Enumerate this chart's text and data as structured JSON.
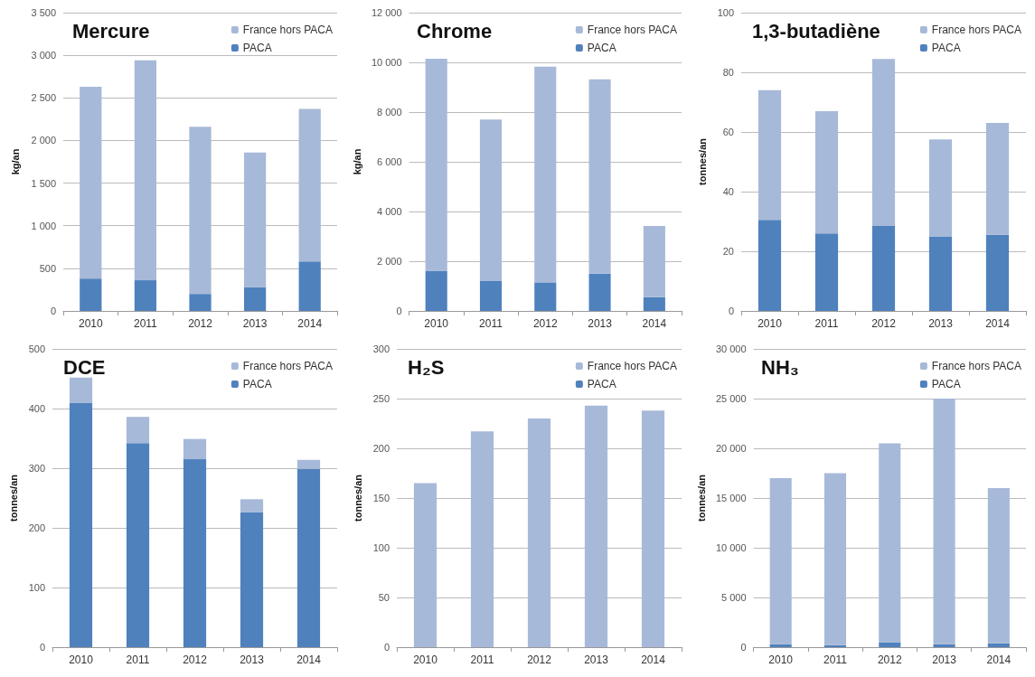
{
  "chart_data": [
    {
      "type": "bar",
      "title": "Mercure",
      "ylabel": "kg/an",
      "categories": [
        "2010",
        "2011",
        "2012",
        "2013",
        "2014"
      ],
      "stacked": true,
      "legend": "top right",
      "grid": "y",
      "ylim": [
        0,
        3500
      ],
      "yticks": [
        0,
        500,
        {
          "value": 1000,
          "label": "1 000"
        },
        {
          "value": 1500,
          "label": "1 500"
        },
        {
          "value": 2000,
          "label": "2 000"
        },
        {
          "value": 2500,
          "label": "2 500"
        },
        {
          "value": 3000,
          "label": "3 000"
        },
        {
          "value": 3500,
          "label": "3 500"
        }
      ],
      "series": [
        {
          "name": "PACA",
          "color": "#4f81bd",
          "values": [
            380,
            360,
            200,
            280,
            580
          ]
        },
        {
          "name": "France hors PACA",
          "color": "#a7b9d8",
          "values": [
            2250,
            2580,
            1960,
            1580,
            1790
          ]
        }
      ]
    },
    {
      "type": "bar",
      "title": "Chrome",
      "ylabel": "kg/an",
      "categories": [
        "2010",
        "2011",
        "2012",
        "2013",
        "2014"
      ],
      "stacked": true,
      "legend": "top right",
      "grid": "y",
      "ylim": [
        0,
        12000
      ],
      "yticks": [
        0,
        {
          "value": 2000,
          "label": "2 000"
        },
        {
          "value": 4000,
          "label": "4 000"
        },
        {
          "value": 6000,
          "label": "6 000"
        },
        {
          "value": 8000,
          "label": "8 000"
        },
        {
          "value": 10000,
          "label": "10 000"
        },
        {
          "value": 12000,
          "label": "12 000"
        }
      ],
      "series": [
        {
          "name": "PACA",
          "color": "#4f81bd",
          "values": [
            1620,
            1220,
            1150,
            1500,
            560
          ]
        },
        {
          "name": "France hors PACA",
          "color": "#a7b9d8",
          "values": [
            8530,
            6480,
            8680,
            7820,
            2860
          ]
        }
      ]
    },
    {
      "type": "bar",
      "title": "1,3-butadiène",
      "ylabel": "tonnes/an",
      "categories": [
        "2010",
        "2011",
        "2012",
        "2013",
        "2014"
      ],
      "stacked": true,
      "legend": "top right",
      "grid": "y",
      "ylim": [
        0,
        100
      ],
      "yticks": [
        0,
        20,
        40,
        60,
        80,
        100
      ],
      "series": [
        {
          "name": "PACA",
          "color": "#4f81bd",
          "values": [
            30.5,
            26,
            28.5,
            25,
            25.5
          ]
        },
        {
          "name": "France hors PACA",
          "color": "#a7b9d8",
          "values": [
            43.5,
            41,
            56,
            32.5,
            37.5
          ]
        }
      ]
    },
    {
      "type": "bar",
      "title": "DCE",
      "ylabel": "tonnes/an",
      "categories": [
        "2010",
        "2011",
        "2012",
        "2013",
        "2014"
      ],
      "stacked": true,
      "legend": "top right",
      "grid": "y",
      "ylim": [
        0,
        500
      ],
      "yticks": [
        0,
        100,
        200,
        300,
        400,
        500
      ],
      "series": [
        {
          "name": "PACA",
          "color": "#4f81bd",
          "values": [
            410,
            342,
            315,
            226,
            299
          ]
        },
        {
          "name": "France hors PACA",
          "color": "#a7b9d8",
          "values": [
            42,
            44,
            34,
            22,
            15
          ]
        }
      ]
    },
    {
      "type": "bar",
      "title": "H₂S",
      "ylabel": "tonnes/an",
      "categories": [
        "2010",
        "2011",
        "2012",
        "2013",
        "2014"
      ],
      "stacked": true,
      "legend": "top right",
      "grid": "y",
      "ylim": [
        0,
        300
      ],
      "yticks": [
        0,
        50,
        100,
        150,
        200,
        250,
        300
      ],
      "series": [
        {
          "name": "PACA",
          "color": "#4f81bd",
          "values": [
            0,
            0,
            0,
            0,
            0
          ]
        },
        {
          "name": "France hors PACA",
          "color": "#a7b9d8",
          "values": [
            165,
            217,
            230,
            243,
            238
          ]
        }
      ]
    },
    {
      "type": "bar",
      "title": "NH₃",
      "ylabel": "tonnes/an",
      "categories": [
        "2010",
        "2011",
        "2012",
        "2013",
        "2014"
      ],
      "stacked": true,
      "legend": "top right",
      "grid": "y",
      "ylim": [
        0,
        30000
      ],
      "yticks": [
        0,
        {
          "value": 5000,
          "label": "5 000"
        },
        {
          "value": 10000,
          "label": "10 000"
        },
        {
          "value": 15000,
          "label": "15 000"
        },
        {
          "value": 20000,
          "label": "20 000"
        },
        {
          "value": 25000,
          "label": "25 000"
        },
        {
          "value": 30000,
          "label": "30 000"
        }
      ],
      "series": [
        {
          "name": "PACA",
          "color": "#4f81bd",
          "values": [
            300,
            200,
            500,
            300,
            400
          ]
        },
        {
          "name": "France hors PACA",
          "color": "#a7b9d8",
          "values": [
            16700,
            17300,
            20000,
            24700,
            15600
          ]
        }
      ]
    }
  ]
}
